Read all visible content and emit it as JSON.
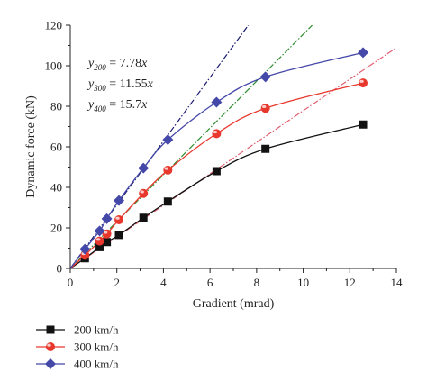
{
  "chart_data": {
    "type": "scatter",
    "xlabel": "Gradient (mrad)",
    "ylabel": "Dynamic force (kN)",
    "xlim": [
      0,
      14
    ],
    "ylim": [
      0,
      120
    ],
    "xticks": [
      "0",
      "2",
      "4",
      "6",
      "8",
      "10",
      "12",
      "14"
    ],
    "yticks": [
      "0",
      "20",
      "40",
      "60",
      "80",
      "100",
      "120"
    ],
    "grid": false,
    "legend_position": "bottom-left",
    "series": [
      {
        "name": "200 km/h",
        "color": "#111111",
        "marker": "square",
        "x": [
          0,
          0.63,
          1.26,
          1.57,
          2.09,
          3.14,
          4.19,
          6.28,
          8.38,
          12.57
        ],
        "y": [
          0,
          5,
          10.5,
          13,
          16.5,
          25,
          33,
          48,
          59,
          71
        ],
        "fit_slope": 7.78,
        "fit_label": "y200 = 7.78x",
        "fit_color": "#e06070",
        "fit_style": "dash-dot"
      },
      {
        "name": "300 km/h",
        "color": "#e8372c",
        "marker": "circle",
        "x": [
          0,
          0.63,
          1.26,
          1.57,
          2.09,
          3.14,
          4.19,
          6.28,
          8.38,
          12.57
        ],
        "y": [
          0,
          6.5,
          13.5,
          17,
          24,
          37,
          48.5,
          66.5,
          79,
          91.5
        ],
        "fit_slope": 11.55,
        "fit_label": "y300 = 11.55x",
        "fit_color": "#2e8b2e",
        "fit_style": "dash-dot"
      },
      {
        "name": "400 km/h",
        "color": "#4448a8",
        "marker": "diamond",
        "x": [
          0,
          0.63,
          1.26,
          1.57,
          2.09,
          3.14,
          4.19,
          6.28,
          8.38,
          12.57
        ],
        "y": [
          0,
          9.5,
          18.5,
          24.5,
          33.5,
          49.5,
          63.5,
          82,
          94.5,
          106.5
        ],
        "fit_slope": 15.7,
        "fit_label": "y400 = 15.7x",
        "fit_color": "#1a1a6e",
        "fit_style": "dash-dot"
      }
    ],
    "equations": [
      {
        "var": "y",
        "sub": "200",
        "rhs": " = 7.78",
        "xvar": "x"
      },
      {
        "var": "y",
        "sub": "300",
        "rhs": " = 11.55",
        "xvar": "x"
      },
      {
        "var": "y",
        "sub": "400",
        "rhs": " = 15.7",
        "xvar": "x"
      }
    ]
  }
}
